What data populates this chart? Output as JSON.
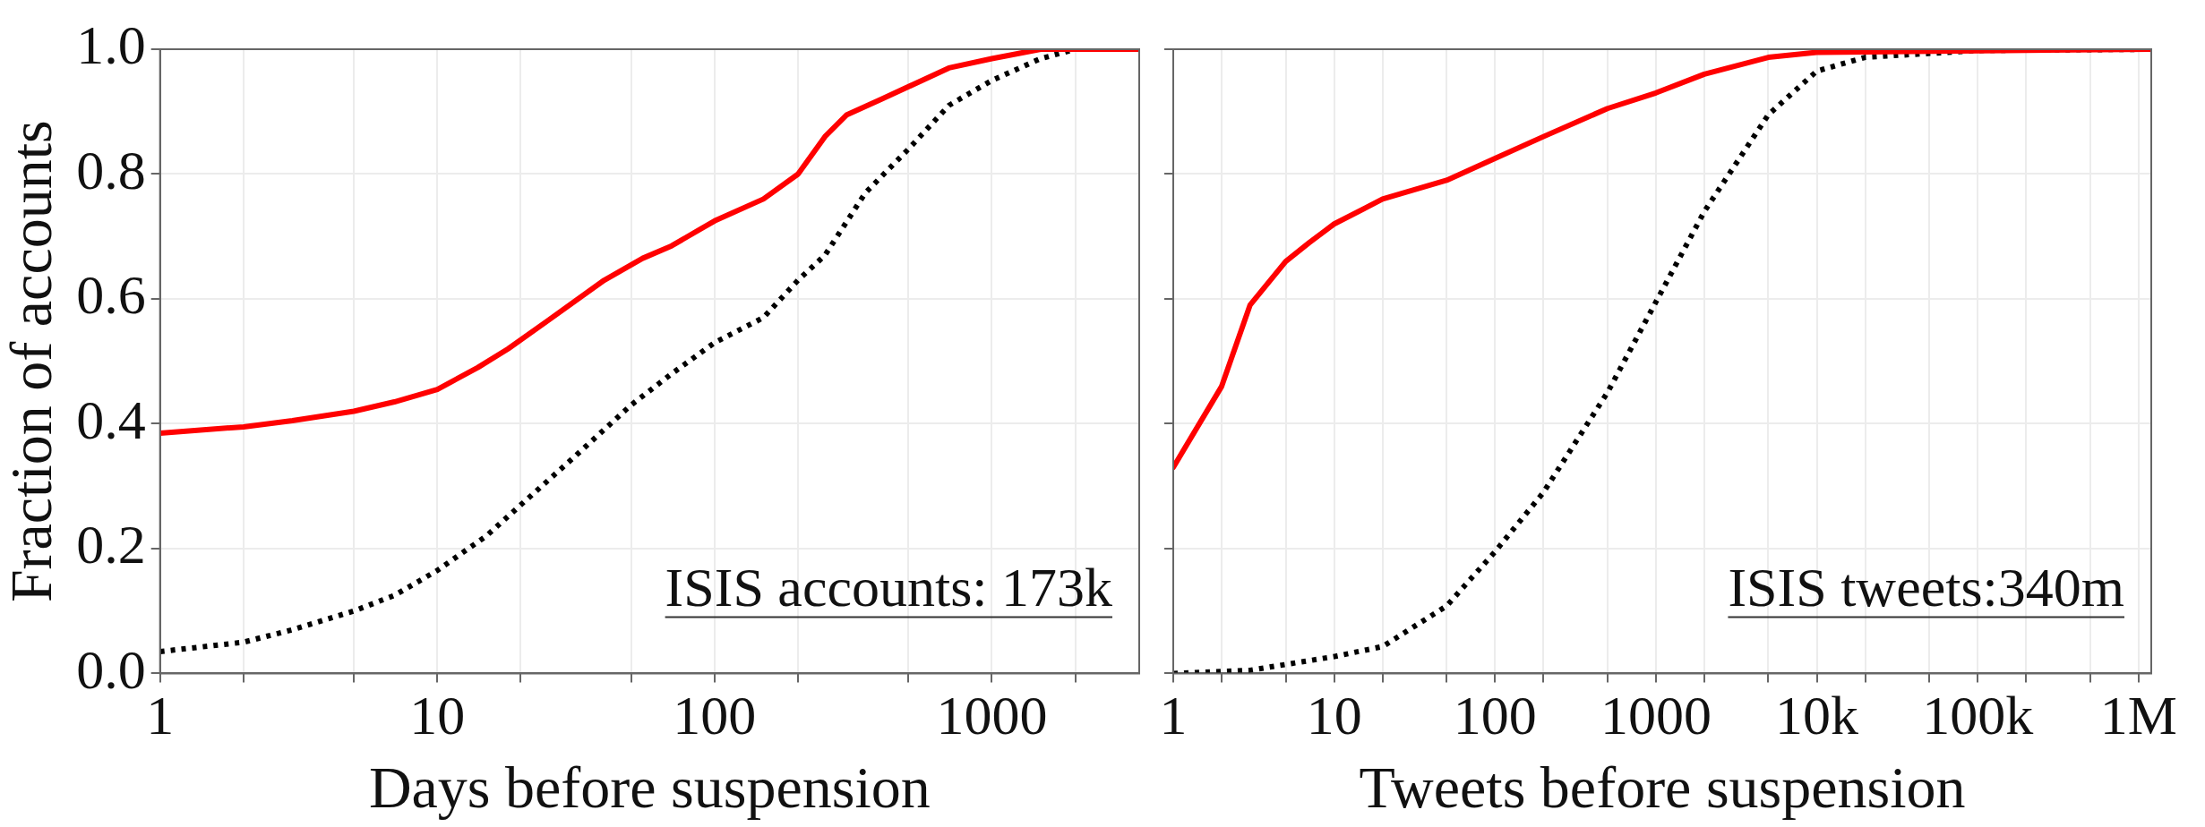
{
  "chart_data": [
    {
      "type": "line",
      "xlabel": "Days before suspension",
      "ylabel": "Fraction of accounts",
      "log": "x",
      "grid": true,
      "legend": false,
      "marker": "none",
      "xlim": [
        1,
        3400
      ],
      "xticks": [
        1,
        {
          "value": 2,
          "label": null
        },
        {
          "value": 5,
          "label": null
        },
        10,
        {
          "value": 20,
          "label": null
        },
        {
          "value": 50,
          "label": null
        },
        100,
        {
          "value": 200,
          "label": null
        },
        {
          "value": 500,
          "label": null
        },
        1000,
        {
          "value": 2000,
          "label": null
        }
      ],
      "ylim": [
        0,
        1
      ],
      "yticks": [
        {
          "value": 0,
          "label": "0.0"
        },
        0.2,
        0.4,
        0.6,
        0.8,
        {
          "value": 1,
          "label": "1.0"
        }
      ],
      "annotations": [
        "ISIS accounts: 173k"
      ],
      "series": [
        {
          "color": "#ff0000",
          "line_style": "solid",
          "x": [
            1,
            2,
            3,
            5,
            7,
            10,
            14,
            18,
            25,
            40,
            55,
            70,
            100,
            150,
            200,
            250,
            300,
            400,
            700,
            1000,
            1500,
            3400
          ],
          "values": [
            0.385,
            0.395,
            0.405,
            0.42,
            0.435,
            0.455,
            0.49,
            0.52,
            0.565,
            0.63,
            0.665,
            0.685,
            0.725,
            0.76,
            0.8,
            0.86,
            0.895,
            0.92,
            0.97,
            0.985,
            1,
            1
          ]
        },
        {
          "color": "#000000",
          "line_style": "dotted",
          "x": [
            1,
            2,
            3,
            5,
            7,
            10,
            15,
            20,
            30,
            50,
            70,
            100,
            150,
            200,
            250,
            350,
            500,
            700,
            1000,
            1500,
            2000,
            3400
          ],
          "values": [
            0.035,
            0.05,
            0.07,
            0.1,
            0.125,
            0.165,
            0.22,
            0.27,
            0.34,
            0.43,
            0.48,
            0.53,
            0.57,
            0.63,
            0.67,
            0.77,
            0.84,
            0.91,
            0.95,
            0.985,
            1,
            1
          ]
        }
      ]
    },
    {
      "type": "line",
      "xlabel": "Tweets before suspension",
      "log": "x",
      "grid": true,
      "legend": false,
      "marker": "none",
      "tick_labels": "x",
      "xlim": [
        1,
        1200000
      ],
      "xticks": [
        1,
        {
          "value": 2,
          "label": null
        },
        {
          "value": 5,
          "label": null
        },
        10,
        {
          "value": 20,
          "label": null
        },
        {
          "value": 50,
          "label": null
        },
        100,
        {
          "value": 200,
          "label": null
        },
        {
          "value": 500,
          "label": null
        },
        1000,
        {
          "value": 2000,
          "label": null
        },
        {
          "value": 5000,
          "label": null
        },
        {
          "value": 10000,
          "label": "10k"
        },
        {
          "value": 20000,
          "label": null
        },
        {
          "value": 50000,
          "label": null
        },
        {
          "value": 100000,
          "label": "100k"
        },
        {
          "value": 200000,
          "label": null
        },
        {
          "value": 500000,
          "label": null
        },
        {
          "value": 1000000,
          "label": "1M"
        }
      ],
      "ylim": [
        0,
        1
      ],
      "yticks": [
        0,
        0.2,
        0.4,
        0.6,
        0.8,
        1
      ],
      "annotations": [
        "ISIS tweets:340m"
      ],
      "series": [
        {
          "color": "#ff0000",
          "line_style": "solid",
          "x": [
            1,
            2,
            3,
            5,
            7,
            10,
            20,
            50,
            100,
            200,
            500,
            1000,
            2000,
            5000,
            10000,
            1200000
          ],
          "values": [
            0.33,
            0.46,
            0.59,
            0.66,
            0.69,
            0.72,
            0.76,
            0.79,
            0.825,
            0.86,
            0.905,
            0.93,
            0.96,
            0.987,
            0.995,
            1
          ]
        },
        {
          "color": "#000000",
          "line_style": "dotted",
          "x": [
            1,
            3,
            10,
            20,
            50,
            100,
            200,
            500,
            1000,
            2000,
            5000,
            10000,
            20000,
            100000,
            1200000
          ],
          "values": [
            0,
            0.005,
            0.027,
            0.043,
            0.108,
            0.195,
            0.29,
            0.45,
            0.595,
            0.74,
            0.895,
            0.965,
            0.987,
            0.998,
            1
          ]
        }
      ]
    }
  ]
}
